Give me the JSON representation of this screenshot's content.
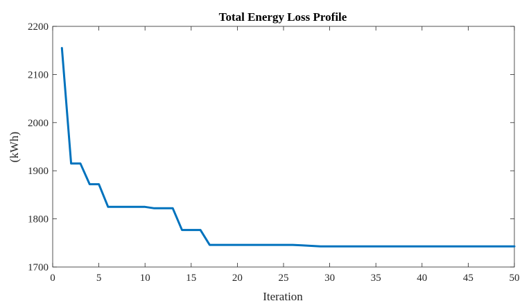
{
  "chart_data": {
    "type": "line",
    "title": "Total Energy Loss Profile",
    "xlabel": "Iteration",
    "ylabel": "(kWh)",
    "xlim": [
      0,
      50
    ],
    "ylim": [
      1700,
      2200
    ],
    "xticks": [
      0,
      5,
      10,
      15,
      20,
      25,
      30,
      35,
      40,
      45,
      50
    ],
    "yticks": [
      1700,
      1800,
      1900,
      2000,
      2100,
      2200
    ],
    "grid": false,
    "legend": "none",
    "series": [
      {
        "color": "#0072BD",
        "x": [
          1,
          2,
          3,
          4,
          5,
          6,
          7,
          8,
          9,
          10,
          11,
          12,
          13,
          14,
          15,
          16,
          17,
          18,
          19,
          20,
          21,
          22,
          23,
          24,
          25,
          26,
          27,
          28,
          29,
          30,
          31,
          32,
          33,
          34,
          35,
          36,
          37,
          38,
          39,
          40,
          41,
          42,
          43,
          44,
          45,
          46,
          47,
          48,
          49,
          50
        ],
        "y": [
          2155,
          1915,
          1915,
          1872,
          1872,
          1825,
          1825,
          1825,
          1825,
          1825,
          1822,
          1822,
          1822,
          1777,
          1777,
          1777,
          1746,
          1746,
          1746,
          1746,
          1746,
          1746,
          1746,
          1746,
          1746,
          1746,
          1745,
          1744,
          1743,
          1743,
          1743,
          1743,
          1743,
          1743,
          1743,
          1743,
          1743,
          1743,
          1743,
          1743,
          1743,
          1743,
          1743,
          1743,
          1743,
          1743,
          1743,
          1743,
          1743,
          1743
        ]
      }
    ]
  }
}
